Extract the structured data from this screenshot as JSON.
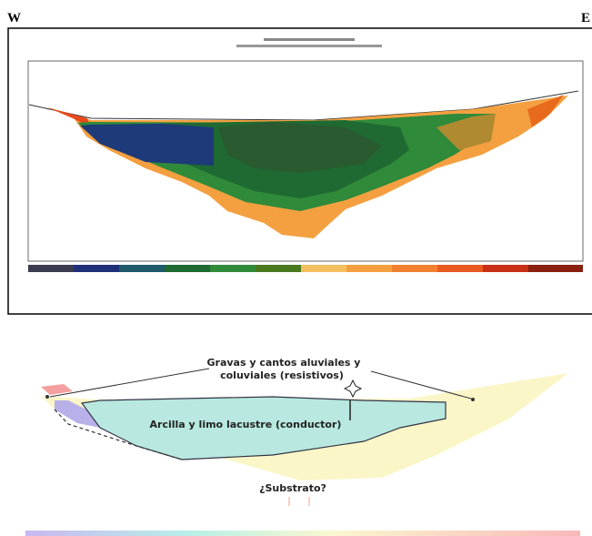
{
  "labels": {
    "west": "W",
    "east": "E"
  },
  "interpretation": {
    "gravels": [
      "Gravas y cantos aluviales y",
      "coluviales (resistivos)"
    ],
    "clay": "Arcilla y limo lacustre (conductor)",
    "substrate": "¿Substrato?"
  }
}
